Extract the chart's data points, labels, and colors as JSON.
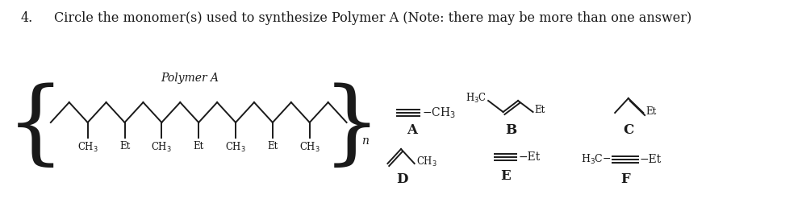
{
  "title_number": "4.",
  "title_text": "Circle the monomer(s) used to synthesize Polymer A (Note: there may be more than one answer)",
  "polymer_label": "Polymer A",
  "repeat_n": "n",
  "background_color": "#ffffff",
  "text_color": "#1a1a1a",
  "title_fontsize": 11.5,
  "label_fontsize": 10,
  "sub_fontsize": 8.5,
  "bold_label_fontsize": 12,
  "figsize": [
    9.94,
    2.47
  ],
  "dpi": 100,
  "sub_labels": [
    "CH3",
    "Et",
    "CH3",
    "Et",
    "CH3",
    "Et",
    "CH3"
  ]
}
